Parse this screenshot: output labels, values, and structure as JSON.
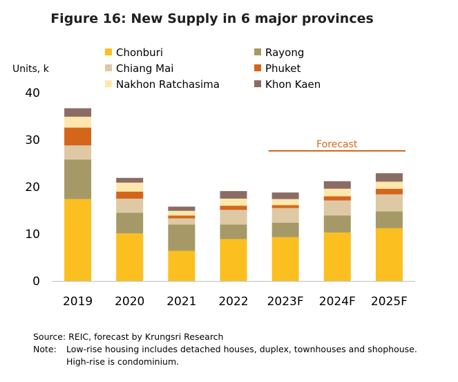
{
  "chart_data": {
    "type": "bar",
    "stacked": true,
    "title": "Figure 16: New Supply in 6 major provinces",
    "ylabel": "Units, k",
    "ylim": [
      0,
      40
    ],
    "yticks": [
      0,
      10,
      20,
      30,
      40
    ],
    "grid": false,
    "legend_position": "top",
    "categories": [
      "2019",
      "2020",
      "2021",
      "2022",
      "2023F",
      "2024F",
      "2025F"
    ],
    "series": [
      {
        "name": "Chonburi",
        "color": "#fbbf1f",
        "values": [
          17.4,
          10.1,
          6.4,
          8.9,
          9.3,
          10.3,
          11.2
        ]
      },
      {
        "name": "Rayong",
        "color": "#a59a67",
        "values": [
          8.4,
          4.4,
          5.6,
          3.1,
          3.1,
          3.6,
          3.6
        ]
      },
      {
        "name": "Chiang Mai",
        "color": "#dfc8a4",
        "values": [
          3.0,
          3.0,
          1.3,
          3.1,
          3.1,
          3.2,
          3.6
        ]
      },
      {
        "name": "Phuket",
        "color": "#d4661b",
        "values": [
          3.8,
          1.5,
          0.6,
          0.9,
          0.6,
          0.9,
          1.2
        ]
      },
      {
        "name": "Nakhon Ratchasima",
        "color": "#fde7ad",
        "values": [
          2.3,
          1.9,
          1.0,
          1.5,
          1.3,
          1.6,
          1.5
        ]
      },
      {
        "name": "Khon Kaen",
        "color": "#8b6c64",
        "values": [
          1.8,
          1.0,
          0.9,
          1.6,
          1.4,
          1.6,
          1.8
        ]
      }
    ],
    "annotations": [
      {
        "text": "Forecast",
        "spans": [
          "2023F",
          "2025F"
        ],
        "color": "#d4661b"
      }
    ]
  },
  "notes": {
    "source_label": "Source:",
    "source_text": "REIC, forecast by Krungsri Research",
    "note_label": "Note:",
    "note_line1": "Low-rise housing  includes detached houses, duplex, townhouses and shophouse.",
    "note_line2": "High-rise is condominium."
  }
}
